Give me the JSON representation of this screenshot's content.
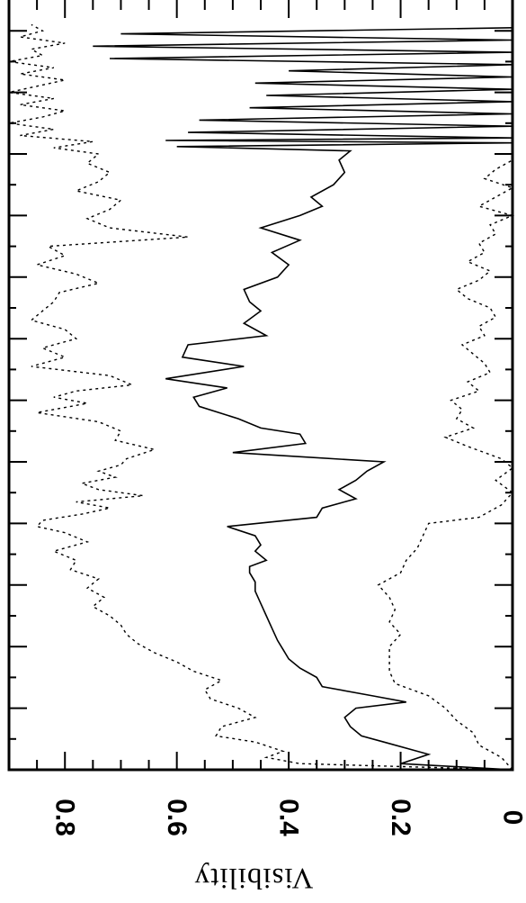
{
  "chart_data": {
    "type": "line",
    "orientation": "rotated-90",
    "xlabel": "",
    "ylabel": "Visibility",
    "ylim": [
      0,
      0.9
    ],
    "y_ticks": [
      0,
      0.2,
      0.4,
      0.6,
      0.8
    ],
    "y_tick_labels": [
      "0",
      "0.2",
      "0.4",
      "0.6",
      "0.8"
    ],
    "x_range": [
      0,
      12.5
    ],
    "x_major_ticks": [
      1,
      2,
      3,
      4,
      5,
      6,
      7,
      8,
      9,
      10,
      11,
      12
    ],
    "x_tick_labels": [],
    "grid": false,
    "line_color": "#000000",
    "series": [
      {
        "line_style": "solid",
        "x": [
          0.0,
          0.1,
          0.25,
          0.45,
          0.55,
          0.7,
          0.85,
          1.0,
          1.1,
          1.2,
          1.35,
          1.5,
          1.65,
          1.8,
          1.95,
          2.1,
          2.3,
          2.5,
          2.7,
          2.9,
          3.05,
          3.2,
          3.3,
          3.4,
          3.55,
          3.65,
          3.8,
          3.95,
          4.1,
          4.25,
          4.4,
          4.55,
          4.7,
          4.85,
          5.0,
          5.15,
          5.3,
          5.45,
          5.55,
          5.7,
          5.9,
          6.05,
          6.2,
          6.35,
          6.55,
          6.7,
          6.9,
          7.05,
          7.25,
          7.45,
          7.6,
          7.8,
          8.0,
          8.2,
          8.4,
          8.6,
          8.8,
          9.0,
          9.15,
          9.3,
          9.5,
          9.7,
          9.9,
          10.05,
          10.12,
          10.18,
          10.22,
          10.26,
          10.35,
          10.45,
          10.55,
          10.65,
          10.75,
          10.85,
          10.95,
          11.05,
          11.15,
          11.25,
          11.35,
          11.45,
          11.55,
          11.65,
          11.75,
          11.85,
          11.95,
          12.05
        ],
        "y": [
          0.0,
          0.2,
          0.15,
          0.23,
          0.27,
          0.29,
          0.3,
          0.28,
          0.19,
          0.25,
          0.34,
          0.35,
          0.38,
          0.4,
          0.41,
          0.42,
          0.43,
          0.44,
          0.45,
          0.46,
          0.46,
          0.47,
          0.47,
          0.44,
          0.46,
          0.45,
          0.46,
          0.51,
          0.35,
          0.34,
          0.28,
          0.31,
          0.28,
          0.26,
          0.23,
          0.5,
          0.37,
          0.38,
          0.45,
          0.49,
          0.56,
          0.57,
          0.51,
          0.62,
          0.48,
          0.59,
          0.58,
          0.44,
          0.48,
          0.45,
          0.47,
          0.48,
          0.42,
          0.4,
          0.43,
          0.38,
          0.45,
          0.38,
          0.34,
          0.36,
          0.32,
          0.3,
          0.31,
          0.29,
          0.6,
          0.0,
          0.62,
          0.0,
          0.58,
          0.0,
          0.56,
          0.0,
          0.47,
          0.0,
          0.44,
          0.0,
          0.46,
          0.0,
          0.4,
          0.0,
          0.72,
          0.0,
          0.75,
          0.0,
          0.7,
          0.0
        ]
      },
      {
        "line_style": "dotted",
        "x": [
          0.0,
          0.1,
          0.2,
          0.3,
          0.45,
          0.55,
          0.7,
          0.85,
          1.0,
          1.15,
          1.3,
          1.45,
          1.6,
          1.75,
          1.9,
          2.05,
          2.2,
          2.35,
          2.5,
          2.65,
          2.8,
          2.95,
          3.1,
          3.25,
          3.4,
          3.55,
          3.7,
          3.85,
          3.95,
          4.05,
          4.15,
          4.25,
          4.35,
          4.45,
          4.55,
          4.65,
          4.75,
          4.85,
          4.95,
          5.05,
          5.2,
          5.35,
          5.5,
          5.65,
          5.8,
          5.95,
          6.05,
          6.15,
          6.25,
          6.4,
          6.55,
          6.7,
          6.85,
          7.0,
          7.15,
          7.3,
          7.45,
          7.6,
          7.75,
          7.9,
          8.05,
          8.2,
          8.35,
          8.5,
          8.65,
          8.8,
          8.95,
          9.1,
          9.25,
          9.4,
          9.55,
          9.7,
          9.85,
          10.0,
          10.1,
          10.2,
          10.3,
          10.4,
          10.5,
          10.6,
          10.7,
          10.8,
          10.9,
          11.0,
          11.1,
          11.2,
          11.3,
          11.4,
          11.5,
          11.6,
          11.7,
          11.8,
          11.9,
          12.0,
          12.1
        ],
        "y": [
          0.0,
          0.38,
          0.44,
          0.41,
          0.46,
          0.53,
          0.52,
          0.46,
          0.49,
          0.54,
          0.55,
          0.52,
          0.57,
          0.6,
          0.64,
          0.67,
          0.69,
          0.7,
          0.72,
          0.75,
          0.73,
          0.76,
          0.74,
          0.79,
          0.78,
          0.82,
          0.76,
          0.8,
          0.85,
          0.84,
          0.77,
          0.72,
          0.78,
          0.66,
          0.74,
          0.77,
          0.71,
          0.74,
          0.7,
          0.69,
          0.64,
          0.71,
          0.7,
          0.74,
          0.85,
          0.76,
          0.82,
          0.78,
          0.68,
          0.72,
          0.86,
          0.8,
          0.84,
          0.78,
          0.8,
          0.86,
          0.84,
          0.82,
          0.81,
          0.74,
          0.78,
          0.85,
          0.8,
          0.83,
          0.58,
          0.72,
          0.76,
          0.72,
          0.7,
          0.78,
          0.74,
          0.72,
          0.76,
          0.74,
          0.82,
          0.75,
          0.88,
          0.82,
          0.9,
          0.84,
          0.8,
          0.88,
          0.82,
          0.9,
          0.85,
          0.8,
          0.88,
          0.82,
          0.9,
          0.84,
          0.86,
          0.8,
          0.88,
          0.84,
          0.86
        ]
      },
      {
        "line_style": "dotted",
        "x": [
          0.0,
          0.2,
          0.4,
          0.6,
          0.8,
          1.0,
          1.2,
          1.4,
          1.6,
          1.8,
          2.0,
          2.2,
          2.4,
          2.6,
          2.8,
          3.0,
          3.2,
          3.4,
          3.6,
          3.8,
          4.0,
          4.1,
          4.3,
          4.5,
          4.7,
          4.9,
          5.05,
          5.15,
          5.25,
          5.4,
          5.55,
          5.7,
          5.85,
          6.0,
          6.15,
          6.3,
          6.45,
          6.6,
          6.75,
          6.9,
          7.05,
          7.2,
          7.35,
          7.5,
          7.65,
          7.8,
          7.95,
          8.1,
          8.25,
          8.4,
          8.55,
          8.7,
          8.85,
          9.0,
          9.15,
          9.3,
          9.45,
          9.6,
          9.75,
          9.9,
          10.05,
          10.12,
          10.2,
          10.28,
          10.36,
          10.45,
          10.55,
          10.65,
          10.75,
          10.85,
          10.95,
          11.05,
          11.15,
          11.25,
          11.35,
          11.45,
          11.55,
          11.65,
          11.75,
          11.85,
          11.95,
          12.05
        ],
        "y": [
          0.0,
          0.02,
          0.06,
          0.07,
          0.1,
          0.12,
          0.15,
          0.21,
          0.22,
          0.22,
          0.22,
          0.2,
          0.22,
          0.21,
          0.22,
          0.24,
          0.2,
          0.19,
          0.17,
          0.16,
          0.15,
          0.06,
          0.02,
          0.0,
          0.03,
          0.0,
          0.02,
          0.05,
          0.08,
          0.12,
          0.07,
          0.1,
          0.09,
          0.11,
          0.06,
          0.08,
          0.04,
          0.05,
          0.07,
          0.09,
          0.05,
          0.06,
          0.03,
          0.04,
          0.08,
          0.1,
          0.06,
          0.04,
          0.08,
          0.05,
          0.06,
          0.03,
          0.04,
          0.0,
          0.06,
          0.03,
          0.0,
          0.05,
          0.03,
          0.0,
          0.0,
          0.0,
          0.0,
          0.0,
          0.0,
          0.0,
          0.0,
          0.0,
          0.0,
          0.0,
          0.0,
          0.0,
          0.0,
          0.0,
          0.0,
          0.0,
          0.0,
          0.0,
          0.0,
          0.0,
          0.0,
          0.0
        ]
      }
    ]
  }
}
